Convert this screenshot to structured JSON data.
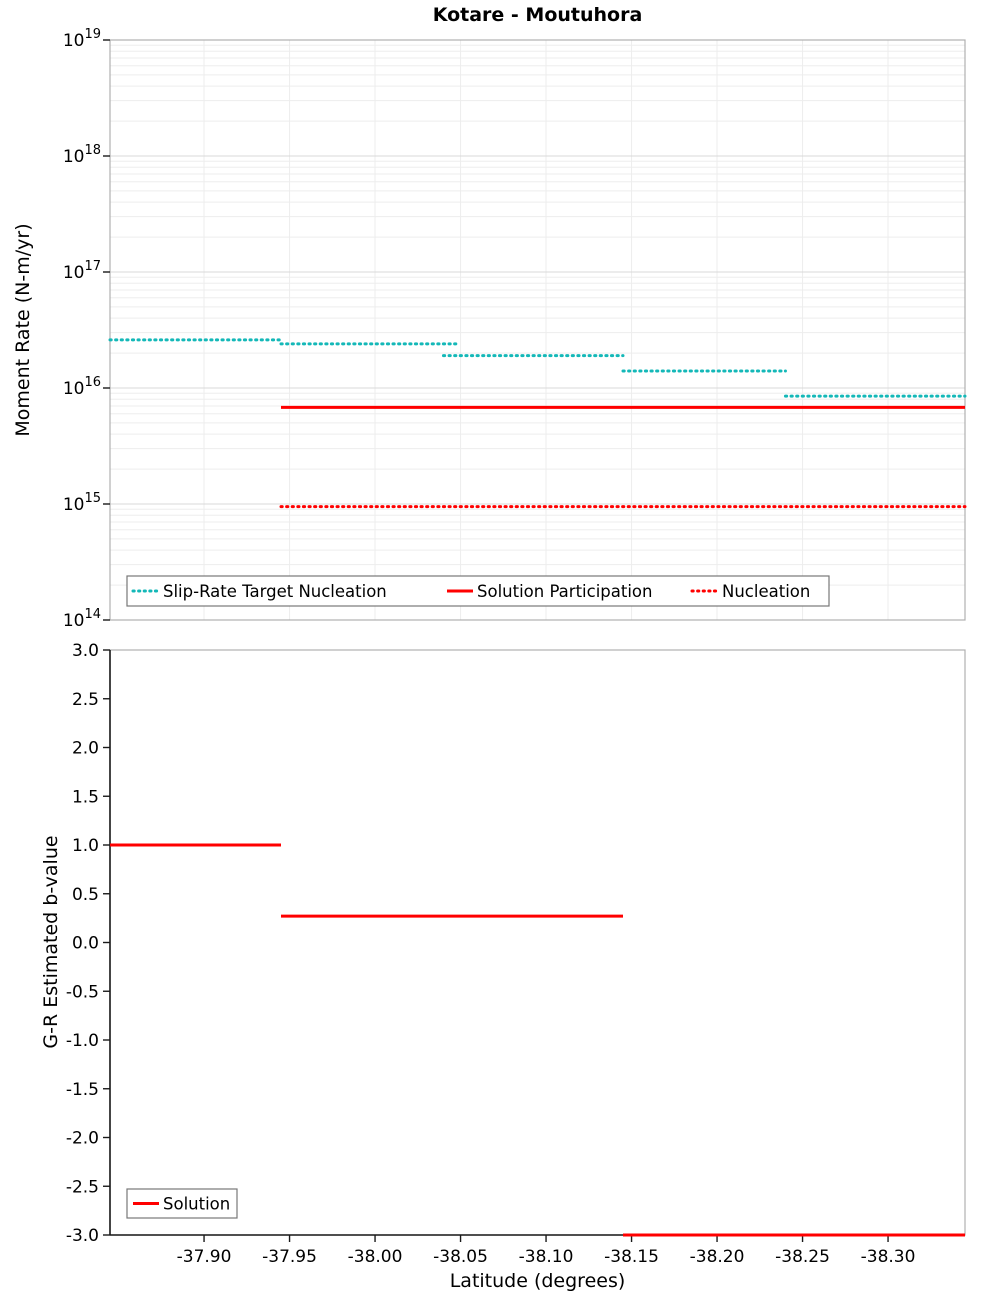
{
  "colors": {
    "slip_rate_teal": "#14b8b8",
    "solution_red": "#ff0000",
    "grid_minor": "#ededed",
    "grid_major": "#d9d9d9",
    "frame": "#b0b0b0",
    "axis": "#1a1a1a",
    "text": "#000000"
  },
  "chart_data": [
    {
      "type": "line",
      "panel": "top",
      "title": "Kotare - Moutuhora",
      "ylabel": "Moment Rate (N-m/yr)",
      "yscale": "log",
      "ylim": [
        100000000000000.0,
        1e+19
      ],
      "y_tick_exponents": [
        14,
        15,
        16,
        17,
        18,
        19
      ],
      "xlim": [
        -37.845,
        -38.345
      ],
      "x_ticks": [
        -37.9,
        -37.95,
        -38,
        -38.05,
        -38.1,
        -38.15,
        -38.2,
        -38.25,
        -38.3
      ],
      "grid": true,
      "legend_position": "bottom-inside-horizontal",
      "series": [
        {
          "name": "Slip-Rate Target Nucleation",
          "color": "#14b8b8",
          "line_style": "dotted",
          "line_width": 3,
          "segments": [
            {
              "x0": -37.845,
              "x1": -37.945,
              "y": 2.6e+16
            },
            {
              "x0": -37.945,
              "x1": -38.048,
              "y": 2.4e+16
            },
            {
              "x0": -38.04,
              "x1": -38.145,
              "y": 1.9e+16
            },
            {
              "x0": -38.145,
              "x1": -38.24,
              "y": 1.4e+16
            },
            {
              "x0": -38.24,
              "x1": -38.345,
              "y": 8500000000000000.0
            }
          ]
        },
        {
          "name": "Solution Participation",
          "color": "#ff0000",
          "line_style": "solid",
          "line_width": 3,
          "segments": [
            {
              "x0": -37.945,
              "x1": -38.345,
              "y": 6800000000000000.0
            }
          ]
        },
        {
          "name": "Nucleation",
          "color": "#ff0000",
          "line_style": "dotted",
          "line_width": 3,
          "segments": [
            {
              "x0": -37.945,
              "x1": -38.345,
              "y": 950000000000000.0
            }
          ]
        }
      ]
    },
    {
      "type": "line",
      "panel": "bottom",
      "ylabel": "G-R Estimated b-value",
      "xlabel": "Latitude (degrees)",
      "yscale": "linear",
      "ylim": [
        -3.0,
        3.0
      ],
      "y_tick_step": 0.5,
      "xlim": [
        -37.845,
        -38.345
      ],
      "x_ticks": [
        -37.9,
        -37.95,
        -38,
        -38.05,
        -38.1,
        -38.15,
        -38.2,
        -38.25,
        -38.3
      ],
      "grid": false,
      "legend_position": "bottom-left-inside",
      "series": [
        {
          "name": "Solution",
          "color": "#ff0000",
          "line_style": "solid",
          "line_width": 3,
          "segments": [
            {
              "x0": -37.845,
              "x1": -37.945,
              "y": 1.0
            },
            {
              "x0": -37.945,
              "x1": -38.145,
              "y": 0.27
            },
            {
              "x0": -38.145,
              "x1": -38.345,
              "y": -3.0
            }
          ]
        }
      ]
    }
  ]
}
